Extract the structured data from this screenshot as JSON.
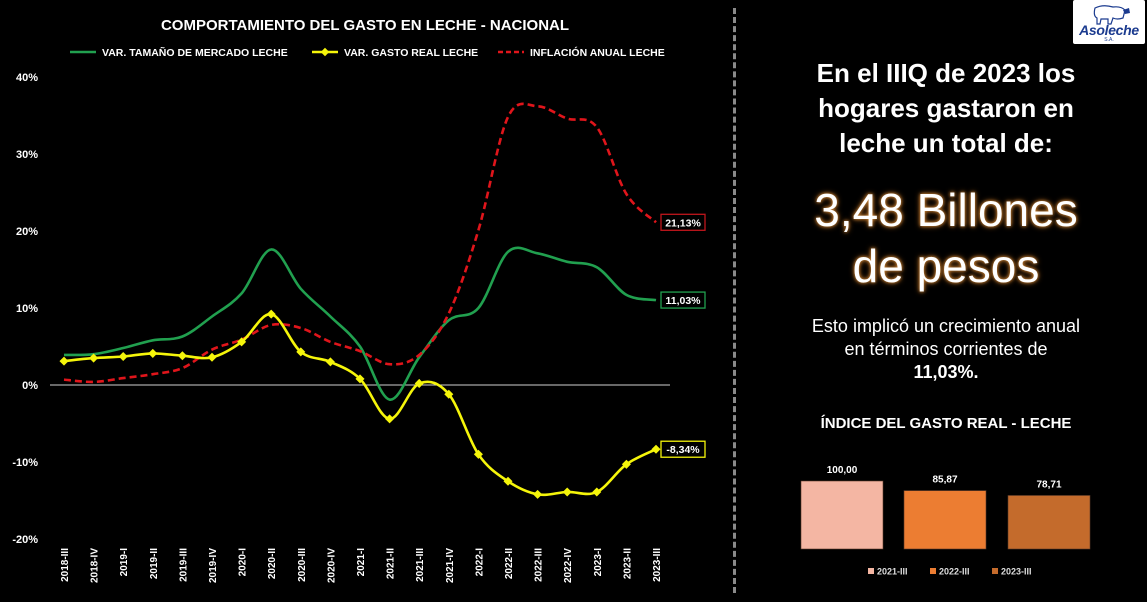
{
  "left_chart": {
    "title": "COMPORTAMIENTO DEL GASTO EN LECHE - NACIONAL",
    "legend": [
      {
        "label": "VAR. TAMAÑO DE MERCADO LECHE",
        "color": "#21a04f",
        "style": "solid"
      },
      {
        "label": "VAR. GASTO REAL LECHE",
        "color": "#f5f50a",
        "style": "solid-marker"
      },
      {
        "label": "INFLACIÓN ANUAL LECHE",
        "color": "#e0151b",
        "style": "dashed"
      }
    ],
    "y_ticks": [
      "40%",
      "30%",
      "20%",
      "10%",
      "0%",
      "-10%",
      "-20%"
    ],
    "end_labels": {
      "inflation": "21,13%",
      "market": "11,03%",
      "real": "-8,34%"
    }
  },
  "chart_data": [
    {
      "type": "line",
      "title": "COMPORTAMIENTO DEL GASTO EN LECHE - NACIONAL",
      "categories": [
        "2018-III",
        "2018-IV",
        "2019-I",
        "2019-II",
        "2019-III",
        "2019-IV",
        "2020-I",
        "2020-II",
        "2020-III",
        "2020-IV",
        "2021-I",
        "2021-II",
        "2021-III",
        "2021-IV",
        "2022-I",
        "2022-II",
        "2022-III",
        "2022-IV",
        "2023-I",
        "2023-II",
        "2023-III"
      ],
      "ylim": [
        -20,
        40
      ],
      "y_unit": "%",
      "grid": false,
      "legend_position": "top",
      "series": [
        {
          "name": "VAR. TAMAÑO DE MERCADO LECHE",
          "color": "#21a04f",
          "values": [
            3.9,
            4.0,
            4.8,
            5.8,
            6.3,
            8.9,
            11.9,
            17.6,
            12.5,
            8.9,
            5.0,
            -1.9,
            3.6,
            8.4,
            10.0,
            17.3,
            17.1,
            16.0,
            15.3,
            11.7,
            11.03
          ]
        },
        {
          "name": "VAR. GASTO REAL LECHE",
          "color": "#f5f50a",
          "values": [
            3.1,
            3.5,
            3.7,
            4.1,
            3.8,
            3.6,
            5.6,
            9.2,
            4.3,
            3.0,
            0.8,
            -4.4,
            0.2,
            -1.2,
            -9.0,
            -12.5,
            -14.2,
            -13.9,
            -13.9,
            -10.3,
            -8.34
          ]
        },
        {
          "name": "INFLACIÓN ANUAL LECHE",
          "color": "#e0151b",
          "values": [
            0.7,
            0.4,
            0.9,
            1.4,
            2.2,
            4.6,
            5.9,
            7.8,
            7.4,
            5.6,
            4.4,
            2.7,
            3.9,
            9.3,
            20.1,
            34.8,
            36.2,
            34.6,
            33.5,
            24.8,
            21.13
          ]
        }
      ]
    },
    {
      "type": "bar",
      "title": "ÍNDICE DEL GASTO REAL - LECHE",
      "categories": [
        "2021-III",
        "2022-III",
        "2023-III"
      ],
      "values": [
        100.0,
        85.87,
        78.71
      ],
      "value_labels": [
        "100,00",
        "85,87",
        "78,71"
      ],
      "colors": [
        "#f4b6a3",
        "#ec7d32",
        "#c46b2c"
      ],
      "legend_position": "bottom",
      "ylim": [
        0,
        100
      ]
    }
  ],
  "right_panel": {
    "logo_text": "Asoleche",
    "logo_sub": "S.A.",
    "headline_lines": [
      "En el IIIQ  de 2023 los",
      "hogares gastaron en",
      "leche un total de:"
    ],
    "big_lines": [
      "3,48 Billones",
      "de pesos"
    ],
    "sub_lines": [
      "Esto implicó un crecimiento anual",
      "en términos corrientes de"
    ],
    "sub_bold": "11,03%.",
    "index_title": "ÍNDICE DEL GASTO REAL - LECHE"
  }
}
